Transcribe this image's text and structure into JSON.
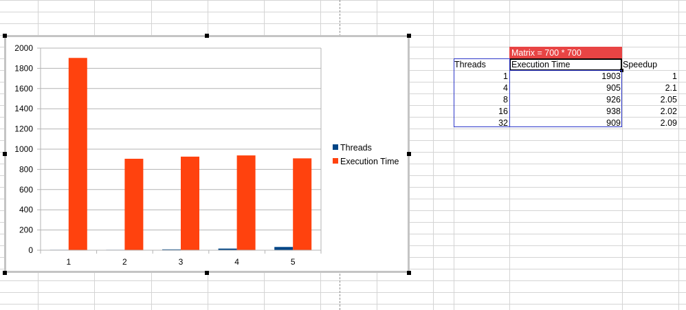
{
  "chart": {
    "legend": {
      "threads_label": "Threads",
      "exec_label": "Execution Time",
      "threads_color": "#004586",
      "exec_color": "#ff420e"
    }
  },
  "chart_data": {
    "type": "bar",
    "categories": [
      "1",
      "2",
      "3",
      "4",
      "5"
    ],
    "series": [
      {
        "name": "Threads",
        "values": [
          1,
          4,
          8,
          16,
          32
        ],
        "color": "#004586"
      },
      {
        "name": "Execution Time",
        "values": [
          1903,
          905,
          926,
          938,
          909
        ],
        "color": "#ff420e"
      }
    ],
    "ylim": [
      0,
      2000
    ],
    "yticks": [
      0,
      200,
      400,
      600,
      800,
      1000,
      1200,
      1400,
      1600,
      1800,
      2000
    ],
    "grid": true,
    "legend_position": "right"
  },
  "table": {
    "title": "Matrix = 700 * 700",
    "title_color": "#e84444",
    "headers": {
      "threads": "Threads",
      "exec": "Execution Time",
      "speedup": "Speedup"
    },
    "rows": [
      {
        "threads": "1",
        "exec": "1903",
        "speedup": "1"
      },
      {
        "threads": "4",
        "exec": "905",
        "speedup": "2.1"
      },
      {
        "threads": "8",
        "exec": "926",
        "speedup": "2.05"
      },
      {
        "threads": "16",
        "exec": "938",
        "speedup": "2.02"
      },
      {
        "threads": "32",
        "exec": "909",
        "speedup": "2.09"
      }
    ]
  }
}
